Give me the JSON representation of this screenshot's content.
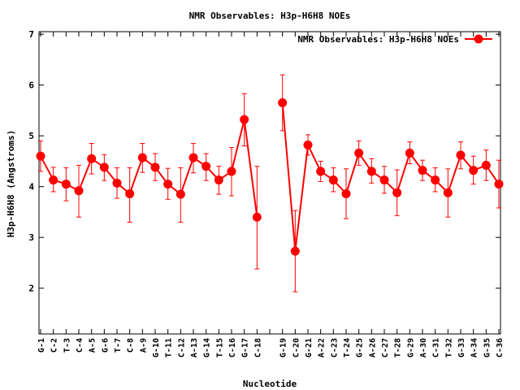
{
  "chart_data": {
    "type": "line",
    "title": "NMR Observables: H3p-H6H8 NOEs",
    "xlabel": "Nucleotide",
    "ylabel": "H3p-H6H8 (Angstroms)",
    "ylim": [
      1.1,
      7.05
    ],
    "yticks": [
      2,
      3,
      4,
      5,
      6,
      7
    ],
    "legend": {
      "position": "top-right",
      "label": "NMR Observables: H3p-H6H8 NOEs"
    },
    "colors": {
      "series": "#ff0000",
      "axis": "#000000"
    },
    "categories": [
      "G-1",
      "C-2",
      "T-3",
      "C-4",
      "A-5",
      "G-6",
      "T-7",
      "C-8",
      "A-9",
      "G-10",
      "T-11",
      "C-12",
      "A-13",
      "G-14",
      "T-15",
      "C-16",
      "G-17",
      "C-18",
      "",
      "G-19",
      "C-20",
      "G-21",
      "A-22",
      "C-23",
      "T-24",
      "G-25",
      "A-26",
      "C-27",
      "T-28",
      "G-29",
      "A-30",
      "C-31",
      "T-32",
      "G-33",
      "A-34",
      "G-35",
      "C-36"
    ],
    "series": [
      {
        "name": "NMR Observables: H3p-H6H8 NOEs",
        "segments": [
          {
            "x": [
              0,
              1,
              2,
              3,
              4,
              5,
              6,
              7,
              8,
              9,
              10,
              11,
              12,
              13,
              14,
              15,
              16,
              17
            ],
            "values": [
              4.6,
              4.13,
              4.05,
              3.92,
              4.55,
              4.38,
              4.07,
              3.86,
              4.57,
              4.38,
              4.05,
              3.85,
              4.57,
              4.4,
              4.13,
              4.3,
              5.32,
              3.4
            ],
            "err_low": [
              4.3,
              3.9,
              3.72,
              3.4,
              4.25,
              4.12,
              3.77,
              3.3,
              4.28,
              4.12,
              3.75,
              3.3,
              4.27,
              4.12,
              3.85,
              3.82,
              4.8,
              2.38
            ],
            "err_high": [
              4.9,
              4.38,
              4.37,
              4.42,
              4.85,
              4.63,
              4.37,
              4.37,
              4.85,
              4.65,
              4.36,
              4.37,
              4.85,
              4.65,
              4.4,
              4.77,
              5.83,
              4.4
            ]
          },
          {
            "x": [
              19,
              20,
              21,
              22,
              23,
              24,
              25,
              26,
              27,
              28,
              29,
              30,
              31,
              32,
              33,
              34,
              35,
              36
            ],
            "values": [
              5.65,
              2.73,
              4.82,
              4.3,
              4.13,
              3.86,
              4.66,
              4.3,
              4.13,
              3.88,
              4.66,
              4.32,
              4.13,
              3.88,
              4.62,
              4.32,
              4.42,
              4.05
            ],
            "err_low": [
              5.1,
              1.93,
              4.62,
              4.1,
              3.9,
              3.37,
              4.42,
              4.07,
              3.87,
              3.43,
              4.45,
              4.12,
              3.9,
              3.4,
              4.35,
              4.05,
              4.12,
              3.58
            ],
            "err_high": [
              6.2,
              3.53,
              5.02,
              4.5,
              4.37,
              4.35,
              4.9,
              4.55,
              4.4,
              4.33,
              4.88,
              4.52,
              4.37,
              4.35,
              4.88,
              4.6,
              4.72,
              4.52
            ]
          }
        ]
      }
    ]
  }
}
